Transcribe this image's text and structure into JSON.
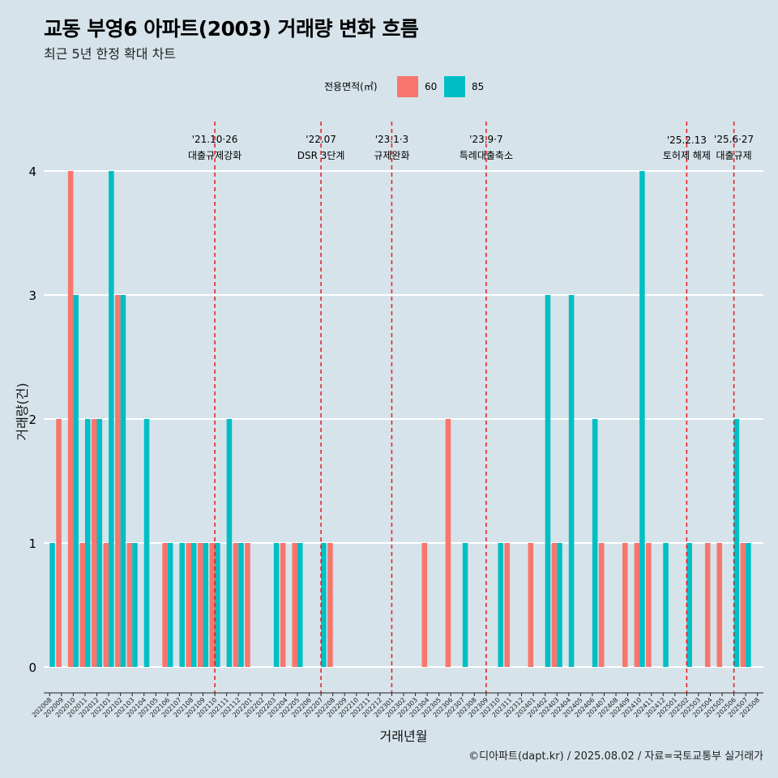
{
  "title": "교동 부영6 아파트(2003) 거래량 변화 흐름",
  "subtitle": "최근 5년 한정 확대 차트",
  "caption": "©디아파트(dapt.kr) / 2025.08.02 / 자료=국토교통부 실거래가",
  "colors": {
    "60": "#f8766d",
    "85": "#00bfc4",
    "background": "#d6e3ea",
    "grid": "#ffffff",
    "event_line": "#e8191f"
  },
  "chart_data": {
    "type": "bar",
    "xlabel": "거래년월",
    "ylabel": "거래량(건)",
    "ylim": [
      -0.2,
      4.4
    ],
    "yticks": [
      0,
      1,
      2,
      3,
      4
    ],
    "legend": {
      "title": "전용면적(㎡)",
      "position": "top",
      "entries": [
        "60",
        "85"
      ]
    },
    "categories": [
      "202008",
      "202009",
      "202010",
      "202011",
      "202012",
      "202101",
      "202102",
      "202103",
      "202104",
      "202105",
      "202106",
      "202107",
      "202108",
      "202109",
      "202110",
      "202111",
      "202112",
      "202201",
      "202202",
      "202203",
      "202204",
      "202205",
      "202206",
      "202207",
      "202208",
      "202209",
      "202210",
      "202211",
      "202212",
      "202301",
      "202302",
      "202303",
      "202304",
      "202305",
      "202306",
      "202307",
      "202308",
      "202309",
      "202310",
      "202311",
      "202312",
      "202401",
      "202402",
      "202403",
      "202404",
      "202405",
      "202406",
      "202407",
      "202408",
      "202409",
      "202410",
      "202411",
      "202412",
      "202501",
      "202502",
      "202503",
      "202504",
      "202505",
      "202506",
      "202507",
      "202508"
    ],
    "series": [
      {
        "name": "60",
        "values": [
          0,
          2,
          4,
          1,
          2,
          1,
          3,
          1,
          0,
          0,
          1,
          0,
          1,
          1,
          1,
          0,
          1,
          1,
          0,
          0,
          1,
          1,
          0,
          0,
          1,
          0,
          0,
          0,
          0,
          0,
          0,
          0,
          1,
          0,
          2,
          0,
          0,
          0,
          0,
          1,
          0,
          1,
          0,
          1,
          0,
          0,
          0,
          1,
          0,
          1,
          1,
          1,
          0,
          0,
          0,
          0,
          1,
          1,
          0,
          1,
          0
        ]
      },
      {
        "name": "85",
        "values": [
          1,
          0,
          3,
          2,
          2,
          4,
          3,
          1,
          2,
          0,
          1,
          1,
          1,
          1,
          1,
          2,
          1,
          0,
          0,
          1,
          0,
          1,
          0,
          1,
          0,
          0,
          0,
          0,
          0,
          0,
          0,
          0,
          0,
          0,
          0,
          1,
          0,
          0,
          1,
          0,
          0,
          0,
          3,
          1,
          3,
          0,
          2,
          0,
          0,
          0,
          4,
          0,
          1,
          0,
          1,
          0,
          0,
          0,
          2,
          1,
          0
        ]
      }
    ],
    "events": [
      {
        "date_label": "'21.10·26",
        "label": "대출규제강화",
        "x": "202110"
      },
      {
        "date_label": "'22.07",
        "label": "DSR 3단계",
        "x": "202207"
      },
      {
        "date_label": "'23.1·3",
        "label": "규제완화",
        "x": "202301"
      },
      {
        "date_label": "'23.9·7",
        "label": "특례대출축소",
        "x": "202309"
      },
      {
        "date_label": "'25.2.13",
        "label": "토허제 해제",
        "x": "202502"
      },
      {
        "date_label": "'25.6·27",
        "label": "대출규제",
        "x": "202506"
      }
    ]
  }
}
